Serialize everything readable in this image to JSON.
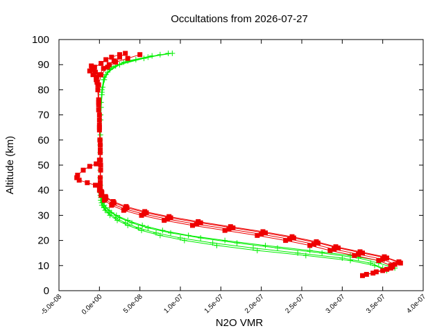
{
  "chart_data": {
    "type": "scatter",
    "title": "Occultations from 2026-07-27",
    "xlabel": "N2O VMR",
    "ylabel": "Altitude (km)",
    "xlim": [
      -5e-08,
      4e-07
    ],
    "ylim": [
      0,
      100
    ],
    "xticks": [
      -5e-08,
      0,
      5e-08,
      1e-07,
      1.5e-07,
      2e-07,
      2.5e-07,
      3e-07,
      3.5e-07,
      4e-07
    ],
    "xtick_labels": [
      "-5.0e-08",
      "0.0e+00",
      "5.0e-08",
      "1.0e-07",
      "1.5e-07",
      "2.0e-07",
      "2.5e-07",
      "3.0e-07",
      "3.5e-07",
      "4.0e-07"
    ],
    "yticks": [
      0,
      10,
      20,
      30,
      40,
      50,
      60,
      70,
      80,
      90,
      100
    ],
    "ytick_labels": [
      "0",
      "10",
      "20",
      "30",
      "40",
      "50",
      "60",
      "70",
      "80",
      "90",
      "100"
    ],
    "grid": false,
    "legend": "none",
    "colors": {
      "green": "#00ee00",
      "red": "#ee0000"
    },
    "series": [
      {
        "color": "green",
        "marker": "plus",
        "profiles": [
          [
            [
              3.55e-07,
              8
            ],
            [
              3.4e-07,
              10
            ],
            [
              3.1e-07,
              12
            ],
            [
              2.55e-07,
              14
            ],
            [
              1.95e-07,
              16
            ],
            [
              1.45e-07,
              18
            ],
            [
              1.05e-07,
              20
            ],
            [
              7.5e-08,
              22
            ],
            [
              5.2e-08,
              24
            ],
            [
              3.5e-08,
              26
            ],
            [
              2.2e-08,
              28
            ],
            [
              1.3e-08,
              30
            ],
            [
              7e-09,
              32
            ],
            [
              3e-09,
              34
            ],
            [
              1.5e-09,
              36
            ],
            [
              1e-09,
              40
            ],
            [
              8e-10,
              50
            ],
            [
              8e-10,
              60
            ],
            [
              1e-09,
              70
            ],
            [
              2e-09,
              75
            ],
            [
              3e-09,
              80
            ],
            [
              5e-09,
              84
            ],
            [
              1e-08,
              87
            ],
            [
              2.5e-08,
              90
            ],
            [
              5.5e-08,
              92.5
            ],
            [
              8.5e-08,
              94.5
            ]
          ],
          [
            [
              3.65e-07,
              9
            ],
            [
              3.45e-07,
              11
            ],
            [
              3.2e-07,
              13
            ],
            [
              2.75e-07,
              15
            ],
            [
              2.2e-07,
              17
            ],
            [
              1.7e-07,
              19
            ],
            [
              1.25e-07,
              21
            ],
            [
              8.8e-08,
              23
            ],
            [
              6e-08,
              25
            ],
            [
              4e-08,
              27
            ],
            [
              2.5e-08,
              29
            ],
            [
              1.5e-08,
              31
            ],
            [
              8e-09,
              33
            ],
            [
              4e-09,
              35
            ],
            [
              1.8e-09,
              37
            ],
            [
              1.2e-09,
              42
            ],
            [
              1e-09,
              55
            ],
            [
              1.5e-09,
              68
            ],
            [
              3e-09,
              78
            ],
            [
              6e-09,
              84
            ],
            [
              1.3e-08,
              88
            ],
            [
              3e-08,
              91
            ],
            [
              6e-08,
              93
            ],
            [
              9e-08,
              94.5
            ]
          ],
          [
            [
              3.5e-07,
              9
            ],
            [
              3.35e-07,
              11
            ],
            [
              3e-07,
              13
            ],
            [
              2.45e-07,
              15
            ],
            [
              1.9e-07,
              17
            ],
            [
              1.4e-07,
              19
            ],
            [
              1e-07,
              21
            ],
            [
              7e-08,
              23
            ],
            [
              4.8e-08,
              25
            ],
            [
              3.2e-08,
              27
            ],
            [
              2e-08,
              29
            ],
            [
              1.1e-08,
              31
            ],
            [
              5.5e-09,
              33
            ],
            [
              2.5e-09,
              35
            ],
            [
              1.2e-09,
              38
            ],
            [
              9e-10,
              45
            ],
            [
              9e-10,
              58
            ],
            [
              1.4e-09,
              70
            ],
            [
              3e-09,
              79
            ],
            [
              6e-09,
              85
            ],
            [
              1.5e-08,
              89
            ],
            [
              3.5e-08,
              91.5
            ],
            [
              6.5e-08,
              93.5
            ]
          ],
          [
            [
              3.6e-07,
              10
            ],
            [
              3.45e-07,
              12
            ],
            [
              3.1e-07,
              14
            ],
            [
              2.6e-07,
              16
            ],
            [
              2.05e-07,
              18
            ],
            [
              1.55e-07,
              20
            ],
            [
              1.1e-07,
              22
            ],
            [
              7.8e-08,
              24
            ],
            [
              5.3e-08,
              26
            ],
            [
              3.5e-08,
              28
            ],
            [
              2.1e-08,
              30
            ],
            [
              1.2e-08,
              32
            ],
            [
              6e-09,
              34
            ],
            [
              2.8e-09,
              36
            ],
            [
              1.3e-09,
              39
            ],
            [
              1e-09,
              48
            ],
            [
              1.2e-09,
              62
            ],
            [
              2e-09,
              73
            ],
            [
              4e-09,
              81
            ],
            [
              8e-09,
              86
            ],
            [
              2e-08,
              89.5
            ],
            [
              4.5e-08,
              92
            ],
            [
              7.5e-08,
              94
            ]
          ]
        ]
      },
      {
        "color": "red",
        "marker": "square",
        "profiles": [
          [
            [
              3.25e-07,
              6
            ],
            [
              3.5e-07,
              8
            ],
            [
              3.6e-07,
              10
            ],
            [
              3.45e-07,
              12
            ],
            [
              3.15e-07,
              14
            ],
            [
              2.85e-07,
              16
            ],
            [
              2.6e-07,
              18
            ],
            [
              2.3e-07,
              20
            ],
            [
              1.95e-07,
              22
            ],
            [
              1.55e-07,
              24
            ],
            [
              1.15e-07,
              26
            ],
            [
              8e-08,
              28
            ],
            [
              5.2e-08,
              30
            ],
            [
              3e-08,
              32
            ],
            [
              1.5e-08,
              34
            ],
            [
              6e-09,
              36
            ],
            [
              2e-09,
              38
            ],
            [
              0,
              40
            ],
            [
              -5e-09,
              42
            ],
            [
              -1.5e-08,
              43
            ],
            [
              -2.5e-08,
              44
            ],
            [
              -2.8e-08,
              45
            ],
            [
              -2.7e-08,
              46
            ],
            [
              -2e-08,
              48
            ],
            [
              -1.2e-08,
              49.5
            ],
            [
              -4e-09,
              50.5
            ],
            [
              0,
              52
            ],
            [
              1e-09,
              55
            ],
            [
              5e-10,
              60
            ],
            [
              0,
              65
            ],
            [
              0,
              70
            ],
            [
              -1e-09,
              75
            ],
            [
              -2e-09,
              80
            ],
            [
              -3e-09,
              83
            ],
            [
              -4e-09,
              85
            ],
            [
              -5e-09,
              87
            ],
            [
              -7e-09,
              88
            ],
            [
              -9e-09,
              89
            ],
            [
              -1e-08,
              89.5
            ]
          ],
          [
            [
              3.38e-07,
              7
            ],
            [
              3.6e-07,
              9
            ],
            [
              3.72e-07,
              11
            ],
            [
              3.55e-07,
              13
            ],
            [
              3.25e-07,
              15
            ],
            [
              2.95e-07,
              17
            ],
            [
              2.7e-07,
              19
            ],
            [
              2.4e-07,
              21
            ],
            [
              2.05e-07,
              23
            ],
            [
              1.65e-07,
              25
            ],
            [
              1.25e-07,
              27
            ],
            [
              8.8e-08,
              29
            ],
            [
              5.8e-08,
              31
            ],
            [
              3.4e-08,
              33
            ],
            [
              1.8e-08,
              35
            ],
            [
              8e-09,
              37
            ],
            [
              3e-09,
              39
            ],
            [
              1e-09,
              41
            ],
            [
              1e-09,
              45
            ],
            [
              1.5e-09,
              50
            ],
            [
              1e-09,
              58
            ],
            [
              0,
              66
            ],
            [
              -1e-09,
              74
            ],
            [
              -2e-09,
              82
            ],
            [
              0,
              86
            ],
            [
              5e-09,
              88.5
            ],
            [
              1.2e-08,
              90
            ],
            [
              1.8e-08,
              91.5
            ],
            [
              2.5e-08,
              93
            ],
            [
              3.2e-08,
              94.5
            ]
          ],
          [
            [
              3.3e-07,
              6.5
            ],
            [
              3.55e-07,
              8.5
            ],
            [
              3.65e-07,
              10.5
            ],
            [
              3.5e-07,
              12.5
            ],
            [
              3.2e-07,
              14.5
            ],
            [
              2.9e-07,
              16.5
            ],
            [
              2.65e-07,
              18.5
            ],
            [
              2.35e-07,
              20.5
            ],
            [
              2e-07,
              22.5
            ],
            [
              1.6e-07,
              24.5
            ],
            [
              1.2e-07,
              26.5
            ],
            [
              8.4e-08,
              28.5
            ],
            [
              5.5e-08,
              30.5
            ],
            [
              3.2e-08,
              32.5
            ],
            [
              1.6e-08,
              34.5
            ],
            [
              7e-09,
              36.5
            ],
            [
              2.5e-09,
              38.5
            ],
            [
              1e-09,
              42
            ],
            [
              1.5e-09,
              48
            ],
            [
              1e-09,
              56
            ],
            [
              0,
              64
            ],
            [
              -1e-09,
              72
            ],
            [
              -2e-09,
              80
            ],
            [
              -4e-09,
              84
            ],
            [
              -8e-09,
              86
            ],
            [
              -1.2e-08,
              87.5
            ],
            [
              -6e-09,
              89
            ],
            [
              2e-09,
              90.5
            ],
            [
              8e-09,
              92
            ],
            [
              1.5e-08,
              93
            ],
            [
              2.5e-08,
              94
            ]
          ],
          [
            [
              3.42e-07,
              7.5
            ],
            [
              3.62e-07,
              9.5
            ],
            [
              3.7e-07,
              11.5
            ],
            [
              3.52e-07,
              13.5
            ],
            [
              3.22e-07,
              15.5
            ],
            [
              2.92e-07,
              17.5
            ],
            [
              2.68e-07,
              19.5
            ],
            [
              2.38e-07,
              21.5
            ],
            [
              2.02e-07,
              23.5
            ],
            [
              1.62e-07,
              25.5
            ],
            [
              1.22e-07,
              27.5
            ],
            [
              8.6e-08,
              29.5
            ],
            [
              5.6e-08,
              31.5
            ],
            [
              3.3e-08,
              33.5
            ],
            [
              1.7e-08,
              35.5
            ],
            [
              7.5e-09,
              37.5
            ],
            [
              2.5e-09,
              39.5
            ],
            [
              1e-09,
              43
            ],
            [
              1.2e-09,
              52
            ],
            [
              8e-10,
              60
            ],
            [
              0,
              68
            ],
            [
              -1e-09,
              76
            ],
            [
              -1e-09,
              82
            ],
            [
              2e-09,
              86
            ],
            [
              1e-08,
              89
            ],
            [
              2e-08,
              91
            ],
            [
              3.5e-08,
              92.5
            ],
            [
              5e-08,
              94
            ]
          ]
        ]
      }
    ]
  }
}
